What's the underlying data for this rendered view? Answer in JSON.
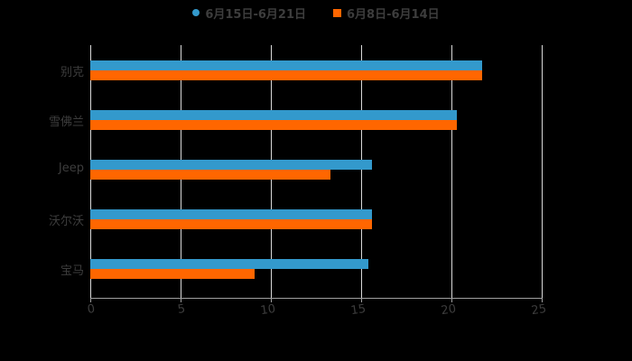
{
  "chart_data": {
    "type": "bar",
    "orientation": "horizontal",
    "title": "",
    "xlabel": "",
    "ylabel": "",
    "categories": [
      "别克",
      "雪佛兰",
      "Jeep",
      "沃尔沃",
      "宝马"
    ],
    "series": [
      {
        "name": "6月15日-6月21日",
        "color": "#3399cc",
        "values": [
          21.7,
          20.3,
          15.6,
          15.6,
          15.4
        ]
      },
      {
        "name": "6月8日-6月14日",
        "color": "#ff6600",
        "values": [
          21.7,
          20.3,
          13.3,
          15.6,
          9.1
        ]
      }
    ],
    "xlim": [
      0,
      25
    ],
    "xticks": [
      "0",
      "5",
      "10",
      "15",
      "20",
      "25"
    ],
    "grid": true,
    "legend_position": "top"
  },
  "legend": [
    {
      "label": "6月15日-6月21日",
      "color": "#3399cc",
      "marker": "circle"
    },
    {
      "label": "6月8日-6月14日",
      "color": "#ff6600",
      "marker": "square"
    }
  ]
}
